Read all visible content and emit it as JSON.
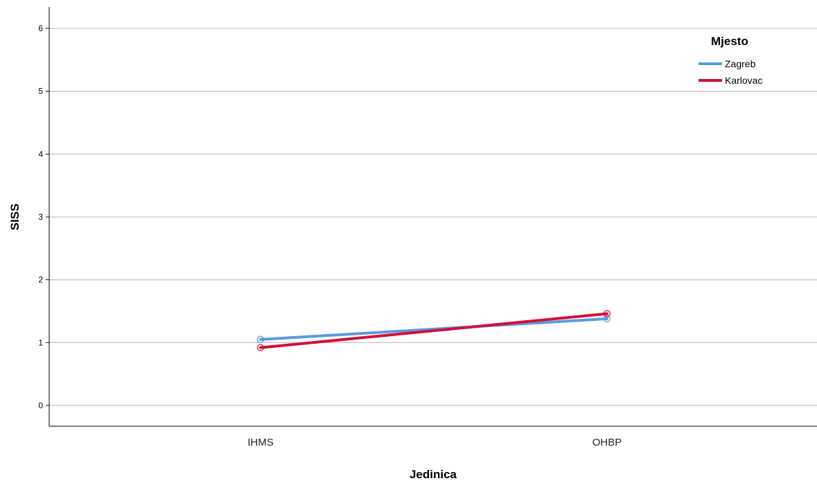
{
  "chart_data": {
    "type": "line",
    "categories": [
      "IHMS",
      "OHBP"
    ],
    "xlabel": "Jedinica",
    "ylabel": "SISS",
    "ylim": [
      -0.3,
      6.3
    ],
    "yticks": [
      0,
      1,
      2,
      3,
      4,
      5,
      6
    ],
    "grid": true,
    "legend": {
      "title": "Mjesto",
      "placement": "top-right"
    },
    "series": [
      {
        "name": "Zagreb",
        "color": "#5B9BE0",
        "values": [
          1.05,
          1.38
        ]
      },
      {
        "name": "Karlovac",
        "color": "#D0103A",
        "values": [
          0.92,
          1.46
        ]
      }
    ]
  }
}
